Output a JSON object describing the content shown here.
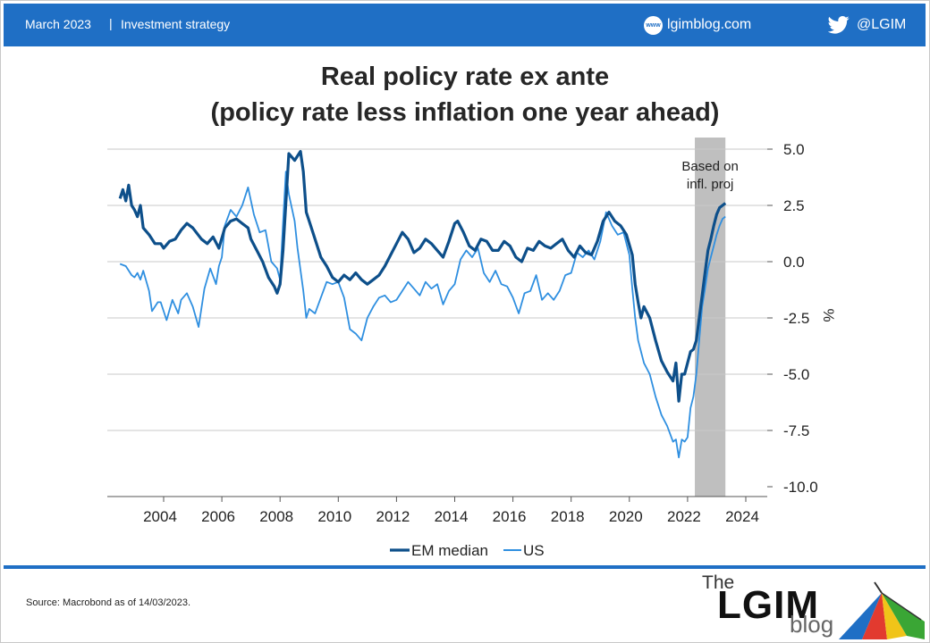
{
  "header": {
    "date": "March 2023",
    "separator": "|",
    "topic": "Investment strategy",
    "site": "lgimblog.com",
    "globe_text": "www",
    "twitter": "@LGIM"
  },
  "footer": {
    "source": "Source: Macrobond as of 14/03/2023.",
    "logo_the": "The",
    "logo_main": "LGIM",
    "logo_blog": "blog"
  },
  "colors": {
    "header_bg": "#1f6fc5",
    "em_series": "#0d4f8a",
    "us_series": "#2f8fe0",
    "shade": "#bfbfbf"
  },
  "chart_data": {
    "type": "line",
    "title_line1": "Real policy rate ex ante",
    "title_line2": "(policy rate less inflation one year ahead)",
    "ylabel": "%",
    "xlim": [
      2002.3,
      2024.7
    ],
    "ylim": [
      -10.5,
      5.3
    ],
    "yticks": [
      5.0,
      2.5,
      0.0,
      -2.5,
      -5.0,
      -7.5,
      -10.0
    ],
    "ytick_labels": [
      "5.0",
      "2.5",
      "0.0",
      "-2.5",
      "-5.0",
      "-7.5",
      "-10.0"
    ],
    "xticks": [
      2004,
      2006,
      2008,
      2010,
      2012,
      2014,
      2016,
      2018,
      2020,
      2022,
      2024
    ],
    "xtick_labels": [
      "2004",
      "2006",
      "2008",
      "2010",
      "2012",
      "2014",
      "2016",
      "2018",
      "2020",
      "2022",
      "2024"
    ],
    "grid": true,
    "shaded_region": {
      "x_start": 2022.25,
      "x_end": 2023.3,
      "label_line1": "Based on",
      "label_line2": "infl. proj"
    },
    "legend": {
      "position": "bottom-center",
      "items": [
        "EM median",
        "US"
      ]
    },
    "series": [
      {
        "name": "EM median",
        "x": [
          2002.5,
          2002.6,
          2002.7,
          2002.8,
          2002.9,
          2003.0,
          2003.1,
          2003.2,
          2003.3,
          2003.5,
          2003.7,
          2003.9,
          2004.0,
          2004.2,
          2004.4,
          2004.6,
          2004.8,
          2005.0,
          2005.3,
          2005.5,
          2005.7,
          2005.9,
          2006.1,
          2006.3,
          2006.5,
          2006.7,
          2006.9,
          2007.0,
          2007.2,
          2007.4,
          2007.6,
          2007.8,
          2007.9,
          2008.0,
          2008.1,
          2008.3,
          2008.5,
          2008.7,
          2008.8,
          2008.9,
          2009.0,
          2009.2,
          2009.4,
          2009.6,
          2009.8,
          2010.0,
          2010.2,
          2010.4,
          2010.6,
          2010.8,
          2011.0,
          2011.2,
          2011.4,
          2011.6,
          2011.8,
          2012.0,
          2012.2,
          2012.4,
          2012.6,
          2012.8,
          2013.0,
          2013.2,
          2013.4,
          2013.6,
          2013.8,
          2014.0,
          2014.1,
          2014.3,
          2014.5,
          2014.7,
          2014.9,
          2015.1,
          2015.3,
          2015.5,
          2015.7,
          2015.9,
          2016.1,
          2016.3,
          2016.5,
          2016.7,
          2016.9,
          2017.1,
          2017.3,
          2017.5,
          2017.7,
          2017.9,
          2018.1,
          2018.3,
          2018.5,
          2018.7,
          2018.9,
          2019.1,
          2019.3,
          2019.5,
          2019.7,
          2019.9,
          2020.1,
          2020.2,
          2020.3,
          2020.4,
          2020.5,
          2020.7,
          2020.9,
          2021.1,
          2021.3,
          2021.5,
          2021.6,
          2021.7,
          2021.8,
          2021.9,
          2022.0,
          2022.1,
          2022.2,
          2022.3,
          2022.4,
          2022.5,
          2022.6,
          2022.7,
          2022.8,
          2022.9,
          2023.0,
          2023.1,
          2023.2,
          2023.3
        ],
        "y": [
          2.8,
          3.2,
          2.7,
          3.4,
          2.5,
          2.3,
          2.0,
          2.5,
          1.5,
          1.2,
          0.8,
          0.8,
          0.6,
          0.9,
          1.0,
          1.4,
          1.7,
          1.5,
          1.0,
          0.8,
          1.1,
          0.6,
          1.5,
          1.8,
          1.9,
          1.7,
          1.5,
          1.0,
          0.5,
          0.0,
          -0.7,
          -1.1,
          -1.4,
          -1.0,
          0.5,
          4.8,
          4.5,
          4.9,
          4.0,
          2.2,
          1.8,
          1.0,
          0.2,
          -0.2,
          -0.7,
          -0.9,
          -0.6,
          -0.8,
          -0.5,
          -0.8,
          -1.0,
          -0.8,
          -0.6,
          -0.2,
          0.3,
          0.8,
          1.3,
          1.0,
          0.4,
          0.6,
          1.0,
          0.8,
          0.5,
          0.2,
          0.9,
          1.7,
          1.8,
          1.3,
          0.7,
          0.5,
          1.0,
          0.9,
          0.5,
          0.5,
          0.9,
          0.7,
          0.2,
          0.0,
          0.6,
          0.5,
          0.9,
          0.7,
          0.6,
          0.8,
          1.0,
          0.5,
          0.2,
          0.7,
          0.4,
          0.3,
          0.9,
          1.8,
          2.2,
          1.8,
          1.6,
          1.2,
          0.3,
          -1.0,
          -1.8,
          -2.5,
          -2.0,
          -2.5,
          -3.5,
          -4.4,
          -4.9,
          -5.3,
          -4.5,
          -6.2,
          -5.0,
          -5.0,
          -4.5,
          -4.0,
          -3.9,
          -3.5,
          -2.5,
          -1.5,
          -0.5,
          0.5,
          1.0,
          1.6,
          2.1,
          2.4,
          2.5,
          2.6
        ]
      },
      {
        "name": "US",
        "x": [
          2002.5,
          2002.7,
          2002.9,
          2003.0,
          2003.1,
          2003.2,
          2003.3,
          2003.5,
          2003.6,
          2003.8,
          2003.9,
          2004.1,
          2004.3,
          2004.5,
          2004.6,
          2004.8,
          2005.0,
          2005.2,
          2005.4,
          2005.6,
          2005.8,
          2005.9,
          2006.0,
          2006.1,
          2006.3,
          2006.5,
          2006.7,
          2006.9,
          2007.1,
          2007.3,
          2007.5,
          2007.7,
          2007.9,
          2008.0,
          2008.1,
          2008.2,
          2008.3,
          2008.5,
          2008.6,
          2008.8,
          2008.9,
          2009.0,
          2009.2,
          2009.4,
          2009.6,
          2009.8,
          2010.0,
          2010.2,
          2010.4,
          2010.6,
          2010.8,
          2011.0,
          2011.2,
          2011.4,
          2011.6,
          2011.8,
          2012.0,
          2012.2,
          2012.4,
          2012.6,
          2012.8,
          2013.0,
          2013.2,
          2013.4,
          2013.6,
          2013.8,
          2014.0,
          2014.2,
          2014.4,
          2014.6,
          2014.8,
          2015.0,
          2015.2,
          2015.4,
          2015.6,
          2015.8,
          2016.0,
          2016.2,
          2016.4,
          2016.6,
          2016.8,
          2017.0,
          2017.2,
          2017.4,
          2017.6,
          2017.8,
          2018.0,
          2018.2,
          2018.4,
          2018.6,
          2018.8,
          2019.0,
          2019.2,
          2019.4,
          2019.6,
          2019.8,
          2020.0,
          2020.1,
          2020.2,
          2020.3,
          2020.5,
          2020.7,
          2020.9,
          2021.1,
          2021.3,
          2021.5,
          2021.6,
          2021.7,
          2021.8,
          2021.9,
          2022.0,
          2022.1,
          2022.2,
          2022.3,
          2022.4,
          2022.5,
          2022.6,
          2022.7,
          2022.8,
          2022.9,
          2023.0,
          2023.1,
          2023.2,
          2023.3
        ],
        "y": [
          -0.1,
          -0.2,
          -0.6,
          -0.7,
          -0.5,
          -0.8,
          -0.4,
          -1.3,
          -2.2,
          -1.8,
          -1.8,
          -2.6,
          -1.7,
          -2.3,
          -1.7,
          -1.4,
          -2.0,
          -2.9,
          -1.2,
          -0.3,
          -1.0,
          -0.2,
          0.2,
          1.6,
          2.3,
          2.0,
          2.5,
          3.3,
          2.1,
          1.3,
          1.4,
          0.0,
          -0.3,
          -0.8,
          1.7,
          4.0,
          3.0,
          1.8,
          0.6,
          -1.3,
          -2.5,
          -2.1,
          -2.3,
          -1.6,
          -0.9,
          -1.0,
          -0.9,
          -1.6,
          -3.0,
          -3.2,
          -3.5,
          -2.5,
          -2.0,
          -1.6,
          -1.5,
          -1.8,
          -1.7,
          -1.3,
          -0.9,
          -1.2,
          -1.5,
          -0.9,
          -1.2,
          -1.0,
          -1.9,
          -1.3,
          -1.0,
          0.1,
          0.5,
          0.2,
          0.6,
          -0.5,
          -0.9,
          -0.4,
          -1.0,
          -1.1,
          -1.6,
          -2.3,
          -1.4,
          -1.3,
          -0.6,
          -1.7,
          -1.4,
          -1.7,
          -1.3,
          -0.6,
          -0.5,
          0.4,
          0.2,
          0.5,
          0.1,
          0.9,
          2.2,
          1.6,
          1.2,
          1.3,
          0.3,
          -1.2,
          -2.5,
          -3.5,
          -4.5,
          -5.0,
          -6.0,
          -6.8,
          -7.3,
          -8.0,
          -7.9,
          -8.7,
          -7.9,
          -8.0,
          -7.8,
          -6.5,
          -6.0,
          -5.0,
          -3.5,
          -2.0,
          -1.2,
          -0.3,
          0.2,
          0.7,
          1.2,
          1.6,
          1.9,
          2.0
        ]
      }
    ]
  }
}
